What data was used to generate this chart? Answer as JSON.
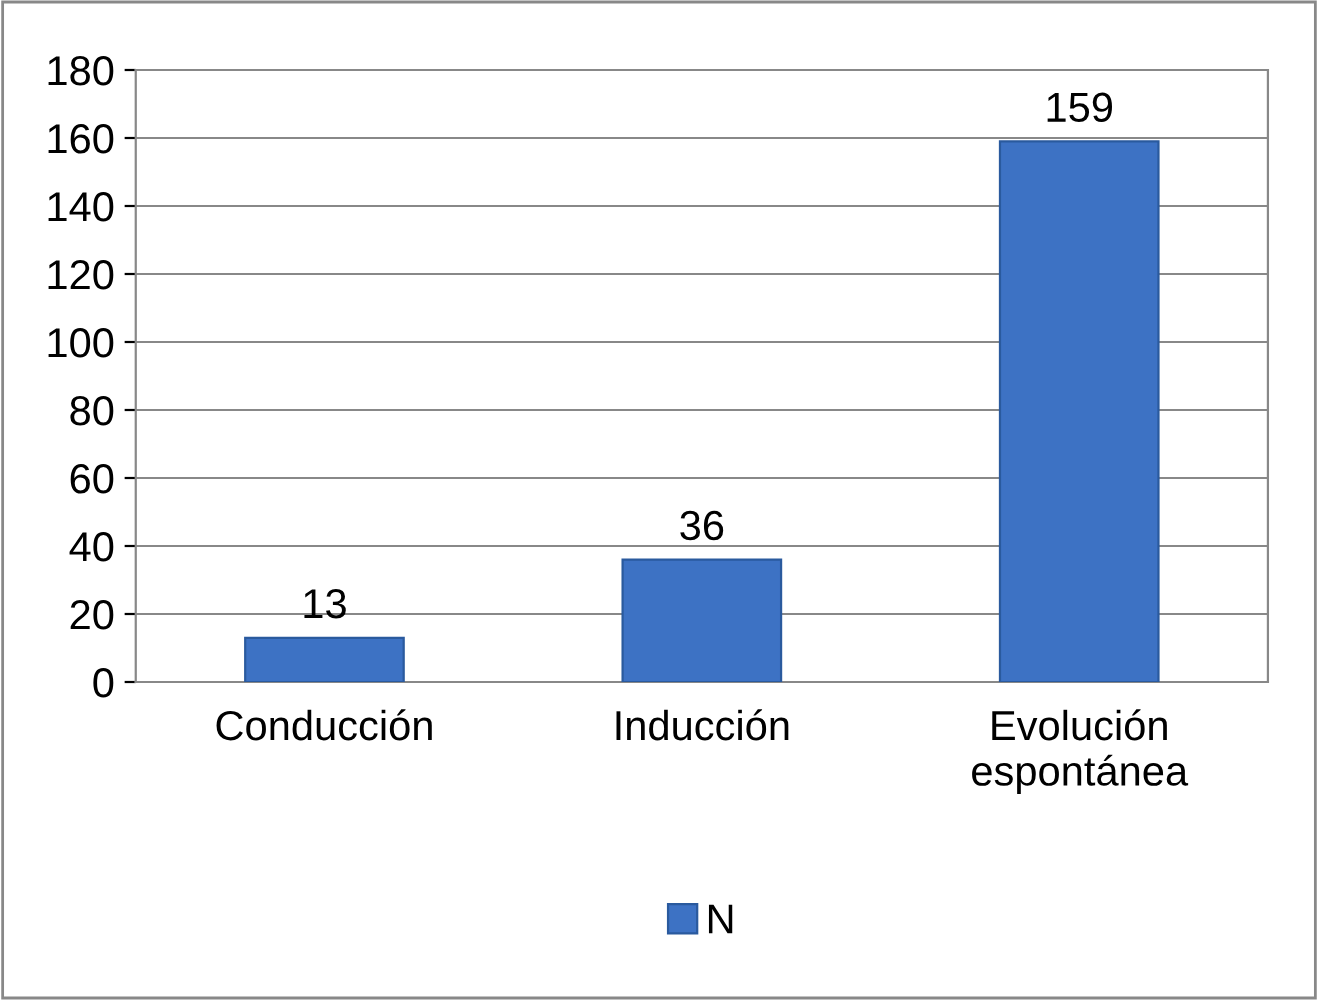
{
  "chart_data": {
    "type": "bar",
    "categories": [
      "Conducción",
      "Inducción",
      "Evolución\nespontánea"
    ],
    "series": [
      {
        "name": "N",
        "color": "#3d72c4",
        "values": [
          13,
          36,
          159
        ]
      }
    ],
    "ylim": [
      0,
      180
    ],
    "yticks": [
      0,
      20,
      40,
      60,
      80,
      100,
      120,
      140,
      160,
      180
    ],
    "grid": "y",
    "legend": "bottom",
    "data_labels": true
  }
}
